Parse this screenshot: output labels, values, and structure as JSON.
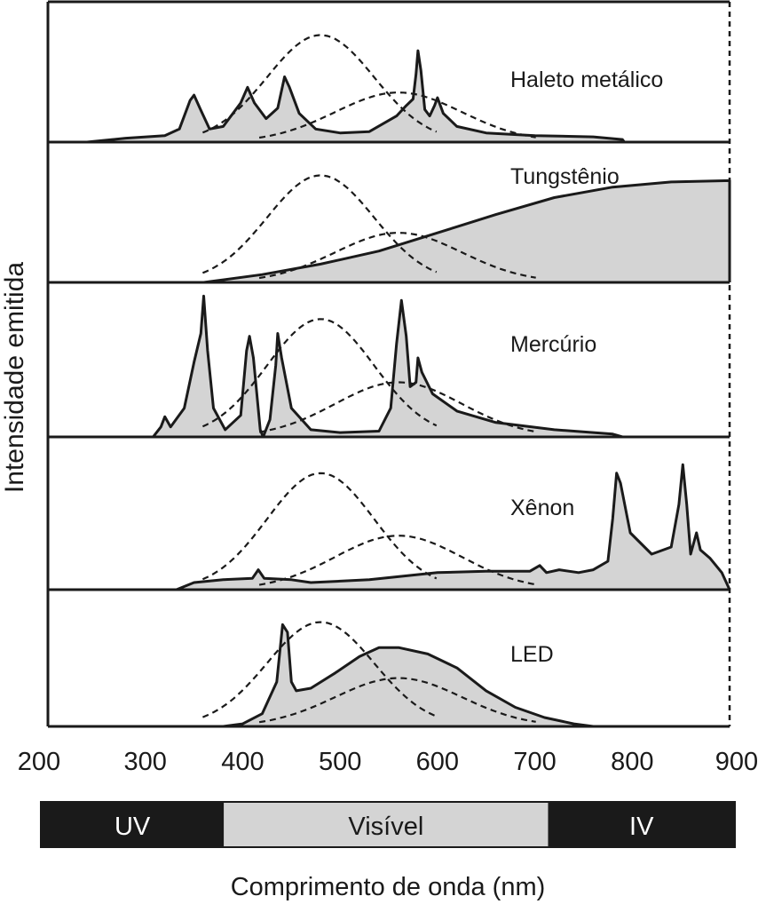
{
  "chart_data": {
    "type": "area",
    "ylabel": "Intensidade emitida",
    "xlabel": "Comprimento de onda (nm)",
    "x_ticks": [
      200,
      300,
      400,
      500,
      600,
      700,
      800,
      900
    ],
    "xlim": [
      200,
      900
    ],
    "ylim": [
      0,
      1
    ],
    "colors": {
      "fill": "#d4d4d4",
      "stroke": "#1a1a1a",
      "band_dark": "#1a1a1a",
      "band_light": "#d4d4d4"
    },
    "bands": [
      {
        "label": "UV",
        "range": [
          200,
          392
        ],
        "color": "dark"
      },
      {
        "label": "Visível",
        "range": [
          392,
          732
        ],
        "color": "light"
      },
      {
        "label": "IV",
        "range": [
          732,
          928
        ],
        "color": "dark"
      }
    ],
    "reference_curves": [
      {
        "peak": 480,
        "sigma": 55,
        "amplitude": 0.82
      },
      {
        "peak": 560,
        "sigma": 65,
        "amplitude": 0.38
      }
    ],
    "panels": [
      {
        "label": "Haleto metálico",
        "series": [
          [
            240,
            0
          ],
          [
            280,
            0.03
          ],
          [
            320,
            0.05
          ],
          [
            335,
            0.1
          ],
          [
            346,
            0.32
          ],
          [
            350,
            0.36
          ],
          [
            356,
            0.26
          ],
          [
            366,
            0.1
          ],
          [
            380,
            0.12
          ],
          [
            398,
            0.3
          ],
          [
            405,
            0.42
          ],
          [
            412,
            0.3
          ],
          [
            424,
            0.18
          ],
          [
            436,
            0.26
          ],
          [
            443,
            0.5
          ],
          [
            448,
            0.42
          ],
          [
            458,
            0.22
          ],
          [
            475,
            0.1
          ],
          [
            500,
            0.07
          ],
          [
            530,
            0.08
          ],
          [
            558,
            0.2
          ],
          [
            568,
            0.28
          ],
          [
            575,
            0.33
          ],
          [
            578,
            0.52
          ],
          [
            580,
            0.7
          ],
          [
            583,
            0.55
          ],
          [
            587,
            0.25
          ],
          [
            592,
            0.2
          ],
          [
            597,
            0.28
          ],
          [
            600,
            0.34
          ],
          [
            606,
            0.22
          ],
          [
            620,
            0.12
          ],
          [
            650,
            0.07
          ],
          [
            700,
            0.05
          ],
          [
            760,
            0.04
          ],
          [
            790,
            0.02
          ],
          [
            792,
            0
          ]
        ]
      },
      {
        "label": "Tungstênio",
        "series": [
          [
            360,
            0
          ],
          [
            420,
            0.06
          ],
          [
            480,
            0.14
          ],
          [
            540,
            0.24
          ],
          [
            600,
            0.38
          ],
          [
            660,
            0.52
          ],
          [
            720,
            0.65
          ],
          [
            780,
            0.73
          ],
          [
            840,
            0.77
          ],
          [
            900,
            0.78
          ],
          [
            900,
            0
          ]
        ]
      },
      {
        "label": "Mercúrio",
        "series": [
          [
            308,
            0
          ],
          [
            316,
            0.07
          ],
          [
            320,
            0.14
          ],
          [
            326,
            0.07
          ],
          [
            340,
            0.2
          ],
          [
            350,
            0.52
          ],
          [
            357,
            0.72
          ],
          [
            360,
            0.98
          ],
          [
            364,
            0.6
          ],
          [
            370,
            0.2
          ],
          [
            382,
            0.05
          ],
          [
            398,
            0.15
          ],
          [
            404,
            0.6
          ],
          [
            407,
            0.7
          ],
          [
            411,
            0.55
          ],
          [
            418,
            0.05
          ],
          [
            421,
            0
          ],
          [
            428,
            0.12
          ],
          [
            434,
            0.5
          ],
          [
            436,
            0.72
          ],
          [
            440,
            0.55
          ],
          [
            450,
            0.2
          ],
          [
            470,
            0.05
          ],
          [
            500,
            0.03
          ],
          [
            540,
            0.04
          ],
          [
            552,
            0.2
          ],
          [
            558,
            0.65
          ],
          [
            563,
            0.95
          ],
          [
            568,
            0.7
          ],
          [
            572,
            0.35
          ],
          [
            578,
            0.38
          ],
          [
            580,
            0.55
          ],
          [
            584,
            0.45
          ],
          [
            595,
            0.3
          ],
          [
            620,
            0.18
          ],
          [
            660,
            0.1
          ],
          [
            720,
            0.05
          ],
          [
            780,
            0.02
          ],
          [
            790,
            0
          ]
        ]
      },
      {
        "label": "Xênon",
        "series": [
          [
            332,
            0
          ],
          [
            350,
            0.05
          ],
          [
            380,
            0.07
          ],
          [
            410,
            0.08
          ],
          [
            416,
            0.14
          ],
          [
            422,
            0.08
          ],
          [
            450,
            0.07
          ],
          [
            470,
            0.05
          ],
          [
            530,
            0.07
          ],
          [
            600,
            0.12
          ],
          [
            650,
            0.13
          ],
          [
            695,
            0.13
          ],
          [
            705,
            0.17
          ],
          [
            712,
            0.12
          ],
          [
            725,
            0.14
          ],
          [
            745,
            0.12
          ],
          [
            760,
            0.14
          ],
          [
            775,
            0.2
          ],
          [
            780,
            0.5
          ],
          [
            784,
            0.82
          ],
          [
            788,
            0.75
          ],
          [
            798,
            0.4
          ],
          [
            820,
            0.25
          ],
          [
            840,
            0.3
          ],
          [
            848,
            0.6
          ],
          [
            852,
            0.88
          ],
          [
            856,
            0.6
          ],
          [
            860,
            0.25
          ],
          [
            866,
            0.4
          ],
          [
            870,
            0.28
          ],
          [
            880,
            0.22
          ],
          [
            892,
            0.12
          ],
          [
            900,
            0
          ]
        ]
      },
      {
        "label": "LED",
        "series": [
          [
            380,
            0
          ],
          [
            400,
            0.02
          ],
          [
            420,
            0.1
          ],
          [
            435,
            0.35
          ],
          [
            441,
            0.8
          ],
          [
            446,
            0.74
          ],
          [
            450,
            0.35
          ],
          [
            455,
            0.28
          ],
          [
            470,
            0.3
          ],
          [
            495,
            0.42
          ],
          [
            520,
            0.55
          ],
          [
            540,
            0.62
          ],
          [
            560,
            0.62
          ],
          [
            590,
            0.57
          ],
          [
            620,
            0.46
          ],
          [
            650,
            0.28
          ],
          [
            680,
            0.15
          ],
          [
            710,
            0.07
          ],
          [
            740,
            0.02
          ],
          [
            760,
            0
          ]
        ]
      }
    ]
  }
}
